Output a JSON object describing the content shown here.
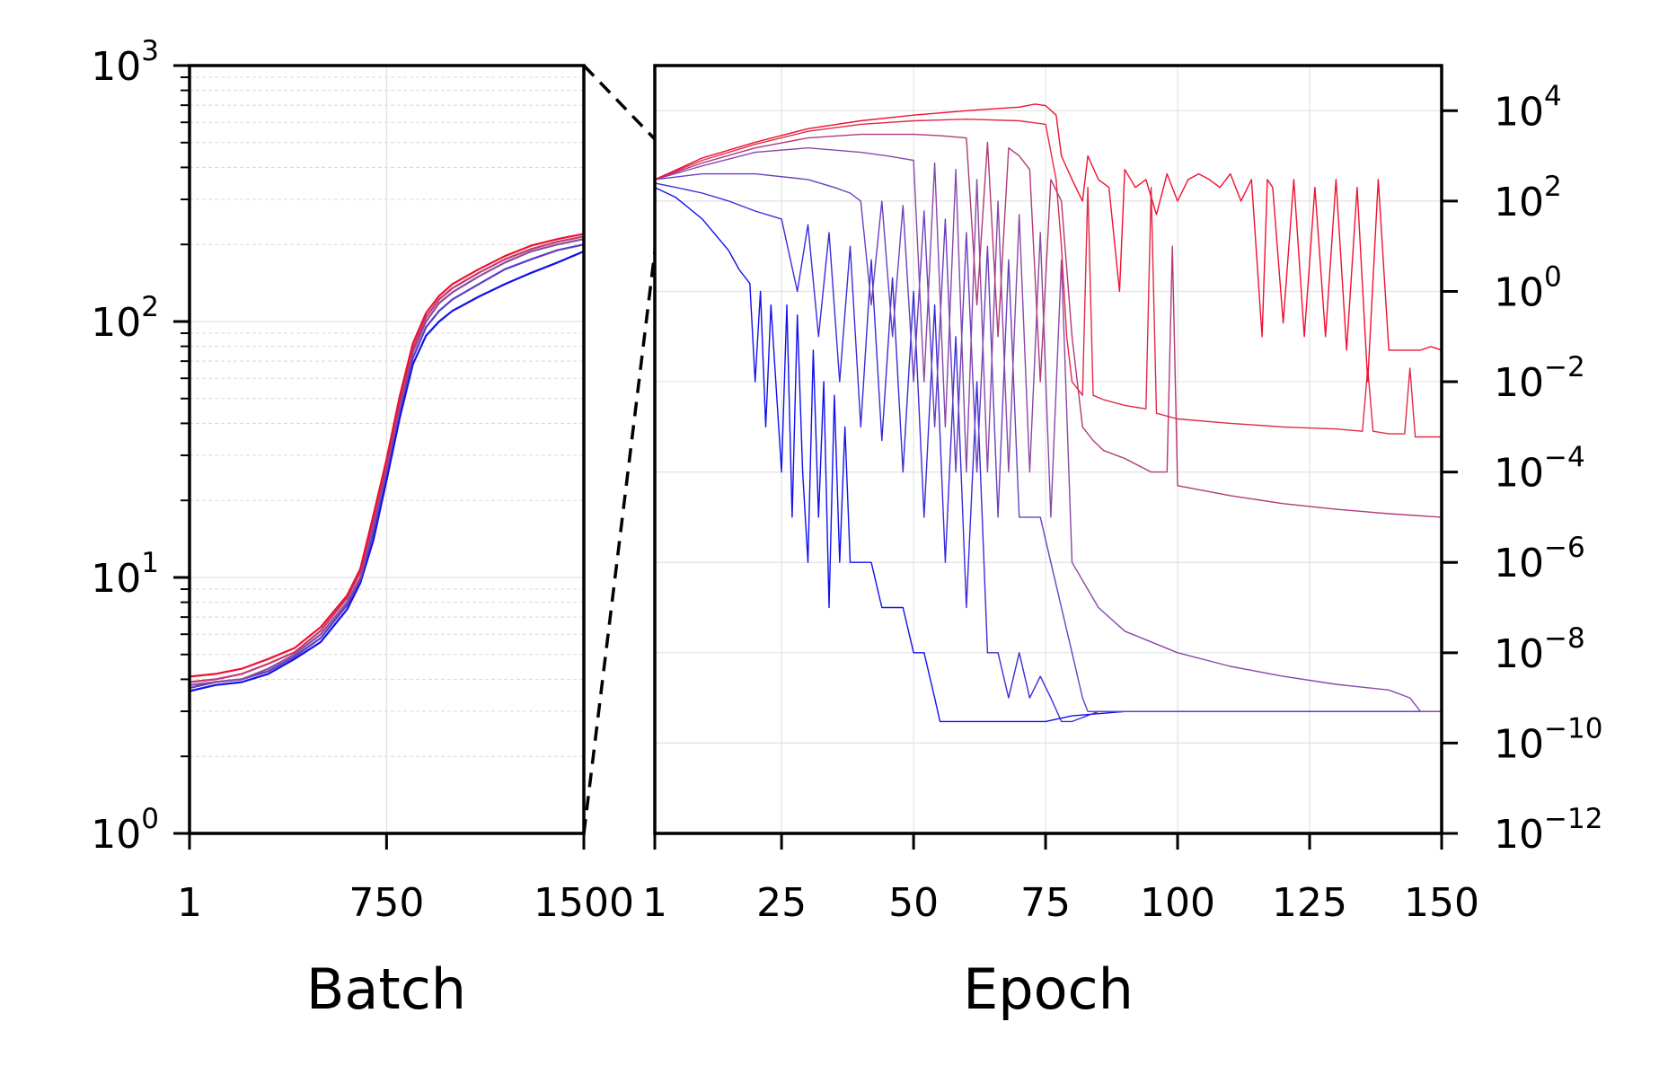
{
  "chart_data": [
    {
      "type": "line",
      "panel": "left",
      "xlabel": "Batch",
      "ylabel": "",
      "title": "",
      "xlim": [
        1,
        1500
      ],
      "ylim": [
        1,
        1000
      ],
      "y_scale": "log",
      "x_ticks": [
        1,
        750,
        1500
      ],
      "x_tick_labels": [
        "1",
        "750",
        "1500"
      ],
      "y_ticks": [
        1,
        10,
        100,
        1000
      ],
      "y_tick_labels": [
        {
          "base": "10",
          "exp": "0"
        },
        {
          "base": "10",
          "exp": "1"
        },
        {
          "base": "10",
          "exp": "2"
        },
        {
          "base": "10",
          "exp": "3"
        }
      ],
      "grid": true,
      "series": [
        {
          "color": "#1010ee",
          "x": [
            1,
            100,
            200,
            300,
            400,
            500,
            600,
            650,
            700,
            750,
            800,
            850,
            900,
            950,
            1000,
            1100,
            1200,
            1300,
            1400,
            1500
          ],
          "y": [
            3.6,
            3.8,
            3.9,
            4.2,
            4.8,
            5.6,
            7.5,
            9.5,
            14,
            24,
            42,
            68,
            88,
            100,
            110,
            125,
            140,
            155,
            170,
            188
          ]
        },
        {
          "color": "#5a3dc4",
          "x": [
            1,
            100,
            200,
            300,
            400,
            500,
            600,
            650,
            700,
            750,
            800,
            850,
            900,
            950,
            1000,
            1100,
            1200,
            1300,
            1400,
            1500
          ],
          "y": [
            3.7,
            3.9,
            4.0,
            4.3,
            4.9,
            5.8,
            7.8,
            9.8,
            15,
            26,
            45,
            72,
            95,
            110,
            122,
            140,
            160,
            175,
            190,
            200
          ]
        },
        {
          "color": "#8e4c9e",
          "x": [
            1,
            100,
            200,
            300,
            400,
            500,
            600,
            650,
            700,
            750,
            800,
            850,
            900,
            950,
            1000,
            1100,
            1200,
            1300,
            1400,
            1500
          ],
          "y": [
            3.8,
            3.9,
            4.0,
            4.4,
            5.0,
            6.0,
            8.0,
            10,
            16,
            27,
            47,
            76,
            100,
            118,
            130,
            150,
            170,
            188,
            200,
            210
          ]
        },
        {
          "color": "#c03a6e",
          "x": [
            1,
            100,
            200,
            300,
            400,
            500,
            600,
            650,
            700,
            750,
            800,
            850,
            900,
            950,
            1000,
            1100,
            1200,
            1300,
            1400,
            1500
          ],
          "y": [
            3.9,
            4.0,
            4.2,
            4.6,
            5.1,
            6.2,
            8.3,
            10.5,
            17,
            28,
            49,
            78,
            104,
            122,
            135,
            155,
            175,
            192,
            205,
            215
          ]
        },
        {
          "color": "#f01030",
          "x": [
            1,
            100,
            200,
            300,
            400,
            500,
            600,
            650,
            700,
            750,
            800,
            850,
            900,
            950,
            1000,
            1100,
            1200,
            1300,
            1400,
            1500
          ],
          "y": [
            4.1,
            4.2,
            4.4,
            4.8,
            5.3,
            6.4,
            8.5,
            10.8,
            17.5,
            29,
            51,
            82,
            108,
            126,
            140,
            160,
            180,
            198,
            210,
            220
          ]
        }
      ]
    },
    {
      "type": "line",
      "panel": "right",
      "xlabel": "Epoch",
      "ylabel": "",
      "title": "",
      "xlim": [
        1,
        150
      ],
      "ylim": [
        1e-12,
        100000.0
      ],
      "y_scale": "log",
      "y_axis_side": "right",
      "x_ticks": [
        1,
        25,
        50,
        75,
        100,
        125,
        150
      ],
      "x_tick_labels": [
        "1",
        "25",
        "50",
        "75",
        "100",
        "125",
        "150"
      ],
      "y_ticks": [
        1e-12,
        1e-10,
        1e-08,
        1e-06,
        0.0001,
        0.01,
        1,
        100,
        10000
      ],
      "y_tick_labels": [
        {
          "base": "10",
          "exp": "−12"
        },
        {
          "base": "10",
          "exp": "−10"
        },
        {
          "base": "10",
          "exp": "−8"
        },
        {
          "base": "10",
          "exp": "−6"
        },
        {
          "base": "10",
          "exp": "−4"
        },
        {
          "base": "10",
          "exp": "−2"
        },
        {
          "base": "10",
          "exp": "0"
        },
        {
          "base": "10",
          "exp": "2"
        },
        {
          "base": "10",
          "exp": "4"
        }
      ],
      "grid": true,
      "series": [
        {
          "color": "#1010ee",
          "x": [
            1,
            5,
            10,
            15,
            17,
            19,
            20,
            21,
            22,
            23,
            25,
            26,
            27,
            28,
            29,
            30,
            31,
            32,
            33,
            34,
            35,
            36,
            37,
            38,
            40,
            42,
            44,
            46,
            48,
            50,
            52,
            54,
            55,
            60,
            65,
            70,
            75,
            80,
            90,
            100,
            110,
            120,
            130,
            140,
            150
          ],
          "y": [
            200,
            120,
            40,
            8,
            3,
            1.5,
            0.01,
            1,
            0.001,
            0.5,
            0.0001,
            0.5,
            1e-05,
            0.3,
            0.0001,
            1e-06,
            0.05,
            1e-05,
            0.01,
            1e-07,
            0.005,
            1e-06,
            0.001,
            1e-06,
            1e-06,
            1e-06,
            1e-07,
            1e-07,
            1e-07,
            1e-08,
            1e-08,
            1e-09,
            3e-10,
            3e-10,
            3e-10,
            3e-10,
            3e-10,
            4e-10,
            5e-10,
            5e-10,
            5e-10,
            5e-10,
            5e-10,
            5e-10,
            5e-10
          ]
        },
        {
          "color": "#3a2cd8",
          "x": [
            1,
            5,
            10,
            15,
            20,
            25,
            28,
            30,
            32,
            34,
            36,
            38,
            40,
            42,
            44,
            46,
            48,
            50,
            52,
            54,
            56,
            58,
            60,
            62,
            64,
            66,
            68,
            70,
            72,
            74,
            76,
            78,
            80,
            85,
            90,
            100,
            110,
            120,
            130,
            140,
            150
          ],
          "y": [
            250,
            200,
            150,
            100,
            60,
            40,
            1,
            30,
            0.1,
            20,
            0.01,
            10,
            0.001,
            5,
            0.0005,
            2,
            0.0001,
            1,
            1e-05,
            0.5,
            1e-06,
            0.1,
            1e-07,
            0.01,
            1e-08,
            1e-08,
            1e-09,
            1e-08,
            1e-09,
            3e-09,
            1e-09,
            3e-10,
            3e-10,
            5e-10,
            5e-10,
            5e-10,
            5e-10,
            5e-10,
            5e-10,
            5e-10,
            5e-10
          ]
        },
        {
          "color": "#6a40c0",
          "x": [
            1,
            10,
            20,
            30,
            35,
            38,
            40,
            42,
            44,
            46,
            48,
            50,
            52,
            54,
            56,
            58,
            60,
            62,
            64,
            66,
            68,
            70,
            72,
            74,
            76,
            78,
            80,
            82,
            83,
            90,
            100,
            110,
            120,
            130,
            140,
            150
          ],
          "y": [
            300,
            400,
            400,
            300,
            200,
            150,
            100,
            0.5,
            100,
            0.1,
            80,
            0.01,
            60,
            0.001,
            40,
            0.0001,
            20,
            0.0001,
            10,
            1e-05,
            5,
            1e-05,
            1e-05,
            1e-05,
            1e-06,
            1e-07,
            1e-08,
            1e-09,
            5e-10,
            5e-10,
            5e-10,
            5e-10,
            5e-10,
            5e-10,
            5e-10,
            5e-10
          ]
        },
        {
          "color": "#8a48a8",
          "x": [
            1,
            10,
            20,
            30,
            40,
            45,
            50,
            52,
            54,
            56,
            58,
            60,
            62,
            64,
            66,
            68,
            70,
            72,
            74,
            76,
            78,
            80,
            85,
            90,
            100,
            110,
            120,
            130,
            140,
            144,
            146,
            150
          ],
          "y": [
            300,
            600,
            1200,
            1500,
            1200,
            1000,
            800,
            0.01,
            700,
            0.001,
            500,
            0.0001,
            300,
            0.0001,
            100,
            0.0001,
            50,
            0.0001,
            20,
            1e-05,
            5,
            1e-06,
            1e-07,
            3e-08,
            1e-08,
            5e-09,
            3e-09,
            2e-09,
            1.5e-09,
            1e-09,
            5e-10,
            5e-10
          ]
        },
        {
          "color": "#b03a78",
          "x": [
            1,
            10,
            20,
            30,
            40,
            50,
            55,
            60,
            62,
            64,
            66,
            68,
            70,
            72,
            74,
            76,
            78,
            80,
            82,
            84,
            86,
            90,
            95,
            98,
            99,
            100,
            110,
            120,
            130,
            140,
            150
          ],
          "y": [
            300,
            700,
            1500,
            2500,
            3000,
            3000,
            2800,
            2500,
            0.5,
            2000,
            0.1,
            1500,
            1000,
            500,
            0.01,
            300,
            100,
            0.1,
            0.001,
            0.0005,
            0.0003,
            0.0002,
            0.0001,
            0.0001,
            10,
            5e-05,
            3e-05,
            2e-05,
            1.5e-05,
            1.2e-05,
            1e-05
          ]
        },
        {
          "color": "#e02a48",
          "x": [
            1,
            10,
            20,
            30,
            40,
            50,
            60,
            70,
            75,
            77,
            78,
            79,
            80,
            82,
            83,
            84,
            86,
            90,
            94,
            95,
            96,
            100,
            110,
            120,
            130,
            135,
            136,
            137,
            140,
            143,
            144,
            145,
            150
          ],
          "y": [
            300,
            800,
            1800,
            3500,
            5000,
            6000,
            6500,
            6000,
            5000,
            300,
            10,
            0.1,
            0.01,
            0.005,
            200,
            0.005,
            0.004,
            0.003,
            0.0025,
            200,
            0.002,
            0.0015,
            0.0012,
            0.001,
            0.0009,
            0.0008,
            0.02,
            0.0008,
            0.0007,
            0.0007,
            0.02,
            0.0006,
            0.0006
          ]
        },
        {
          "color": "#f01030",
          "x": [
            1,
            10,
            20,
            30,
            40,
            50,
            60,
            65,
            70,
            73,
            75,
            77,
            78,
            80,
            82,
            83,
            85,
            87,
            89,
            90,
            92,
            94,
            96,
            98,
            100,
            102,
            104,
            106,
            108,
            110,
            112,
            114,
            116,
            117,
            118,
            120,
            122,
            124,
            126,
            128,
            130,
            132,
            134,
            136,
            138,
            140,
            142,
            144,
            146,
            148,
            150
          ],
          "y": [
            300,
            900,
            2000,
            4000,
            6000,
            8000,
            10000,
            11000,
            12000,
            14000,
            13000,
            8000,
            1000,
            300,
            100,
            1000,
            300,
            200,
            1,
            500,
            200,
            300,
            50,
            400,
            100,
            300,
            400,
            300,
            200,
            400,
            100,
            300,
            0.1,
            300,
            200,
            0.2,
            300,
            0.1,
            200,
            0.1,
            300,
            0.05,
            200,
            0.01,
            300,
            0.05,
            0.05,
            0.05,
            0.05,
            0.06,
            0.05
          ]
        }
      ]
    }
  ]
}
